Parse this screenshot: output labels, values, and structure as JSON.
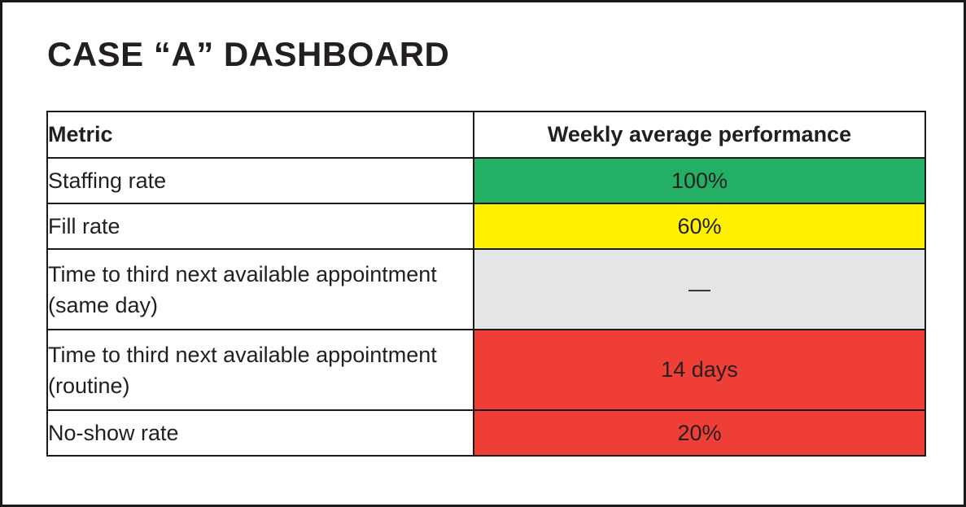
{
  "title": "CASE “A” DASHBOARD",
  "colors": {
    "good": "#23af64",
    "warning": "#fff100",
    "neutral": "#e4e5e7",
    "bad": "#ef3e36",
    "text": "#231f20",
    "border": "#1a1a1a",
    "background": "#ffffff"
  },
  "table": {
    "headers": {
      "metric": "Metric",
      "performance": "Weekly average performance"
    },
    "rows": [
      {
        "metric": "Staffing rate",
        "value": "100%",
        "status": "good",
        "color": "#23af64"
      },
      {
        "metric": "Fill rate",
        "value": "60%",
        "status": "warning",
        "color": "#fff100"
      },
      {
        "metric": "Time to third next available appointment (same day)",
        "value": "—",
        "status": "neutral",
        "color": "#e4e5e7"
      },
      {
        "metric": "Time to third next available appointment (routine)",
        "value": "14 days",
        "status": "bad",
        "color": "#ef3e36"
      },
      {
        "metric": "No-show rate",
        "value": "20%",
        "status": "bad",
        "color": "#ef3e36"
      }
    ]
  }
}
